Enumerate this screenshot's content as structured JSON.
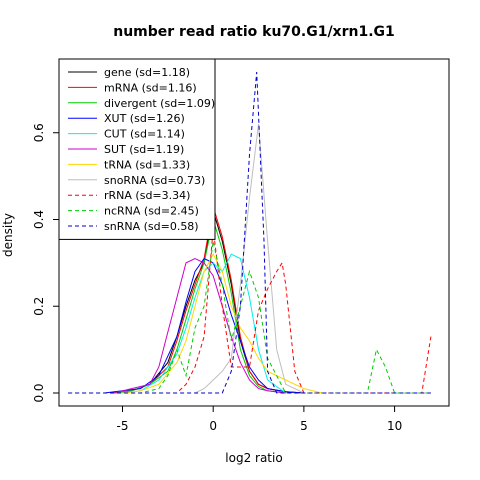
{
  "chart_data": {
    "type": "line",
    "title": "number read ratio ku70.G1/xrn1.G1",
    "xlabel": "log2 ratio",
    "ylabel": "density",
    "xlim": [
      -8.5,
      13
    ],
    "ylim": [
      -0.03,
      0.77
    ],
    "x_ticks": [
      -5,
      0,
      5,
      10
    ],
    "y_ticks": [
      0.0,
      0.2,
      0.4,
      0.6
    ],
    "x_tick_labels": [
      "-5",
      "0",
      "5",
      "10"
    ],
    "y_tick_labels": [
      "0.0",
      "0.2",
      "0.4",
      "0.6"
    ],
    "grid": false,
    "legend_position": "top-left",
    "series": [
      {
        "name": "gene (sd=1.18)",
        "color": "#000000",
        "dash": "solid",
        "x": [
          -5.5,
          -4.5,
          -3.5,
          -2.5,
          -2,
          -1.5,
          -1,
          -0.5,
          0,
          0.5,
          1,
          1.5,
          2,
          2.5,
          3,
          4,
          5
        ],
        "y": [
          0,
          0.005,
          0.02,
          0.07,
          0.13,
          0.2,
          0.26,
          0.3,
          0.42,
          0.35,
          0.25,
          0.12,
          0.05,
          0.02,
          0.01,
          0.003,
          0
        ]
      },
      {
        "name": "mRNA (sd=1.16)",
        "color": "#ff0000",
        "dash": "solid",
        "x": [
          -5.5,
          -4.5,
          -3.5,
          -2.5,
          -2,
          -1.5,
          -1,
          -0.5,
          0,
          0.5,
          1,
          1.5,
          2,
          2.5,
          3,
          4,
          5
        ],
        "y": [
          0,
          0.005,
          0.02,
          0.06,
          0.12,
          0.19,
          0.25,
          0.31,
          0.43,
          0.36,
          0.26,
          0.13,
          0.05,
          0.02,
          0.01,
          0.003,
          0
        ]
      },
      {
        "name": "divergent (sd=1.09)",
        "color": "#00cd00",
        "dash": "solid",
        "x": [
          -5.5,
          -4.5,
          -3.5,
          -2.5,
          -2,
          -1.5,
          -1,
          -0.5,
          0,
          0.5,
          1,
          1.5,
          2,
          2.5,
          3,
          4
        ],
        "y": [
          0,
          0.005,
          0.02,
          0.05,
          0.1,
          0.17,
          0.24,
          0.3,
          0.4,
          0.33,
          0.23,
          0.1,
          0.04,
          0.015,
          0.005,
          0
        ]
      },
      {
        "name": "XUT (sd=1.26)",
        "color": "#0000ff",
        "dash": "solid",
        "x": [
          -6,
          -5,
          -4,
          -3,
          -2,
          -1.5,
          -1,
          -0.5,
          0,
          0.5,
          1,
          1.5,
          2,
          2.5,
          3,
          4,
          5
        ],
        "y": [
          0,
          0.005,
          0.01,
          0.04,
          0.13,
          0.21,
          0.28,
          0.31,
          0.3,
          0.25,
          0.18,
          0.12,
          0.06,
          0.03,
          0.01,
          0.003,
          0
        ]
      },
      {
        "name": "CUT (sd=1.14)",
        "color": "#00eeee",
        "dash": "solid",
        "x": [
          -5,
          -4,
          -3,
          -2,
          -1.5,
          -1,
          -0.5,
          0,
          0.5,
          1,
          1.5,
          2,
          2.5,
          3,
          4
        ],
        "y": [
          0,
          0.005,
          0.03,
          0.09,
          0.15,
          0.22,
          0.28,
          0.3,
          0.28,
          0.32,
          0.31,
          0.22,
          0.1,
          0.03,
          0
        ]
      },
      {
        "name": "SUT (sd=1.19)",
        "color": "#cd00cd",
        "dash": "solid",
        "x": [
          -5.5,
          -4.5,
          -3.5,
          -3,
          -2.5,
          -2,
          -1.5,
          -1,
          -0.5,
          0,
          0.5,
          1,
          1.5,
          2,
          2.5,
          3,
          4
        ],
        "y": [
          0,
          0.01,
          0.02,
          0.06,
          0.14,
          0.22,
          0.3,
          0.31,
          0.3,
          0.27,
          0.2,
          0.13,
          0.07,
          0.03,
          0.01,
          0.005,
          0
        ]
      },
      {
        "name": "tRNA (sd=1.33)",
        "color": "#ffd700",
        "dash": "solid",
        "x": [
          -5,
          -4,
          -3,
          -2,
          -1.5,
          -1,
          -0.5,
          0,
          0.5,
          1,
          1.5,
          2,
          2.5,
          3,
          4,
          5,
          6
        ],
        "y": [
          0,
          0.005,
          0.02,
          0.07,
          0.12,
          0.2,
          0.28,
          0.32,
          0.28,
          0.2,
          0.15,
          0.12,
          0.08,
          0.05,
          0.03,
          0.01,
          0
        ]
      },
      {
        "name": "snoRNA (sd=0.73)",
        "color": "#bebebe",
        "dash": "solid",
        "x": [
          -1,
          -0.5,
          0,
          0.5,
          1,
          1.5,
          2,
          2.5,
          3,
          3.5,
          4,
          5
        ],
        "y": [
          0,
          0.01,
          0.03,
          0.05,
          0.08,
          0.25,
          0.45,
          0.62,
          0.35,
          0.1,
          0.02,
          0
        ]
      },
      {
        "name": "rRNA (sd=3.34)",
        "color": "#ff0000",
        "dash": "dashed",
        "x": [
          -8,
          -4,
          -2,
          -1.5,
          -1,
          -0.5,
          0,
          0.5,
          1,
          1.5,
          2,
          2.5,
          3,
          3.5,
          3.8,
          4,
          4.5,
          5,
          6,
          8,
          10,
          11.5,
          12
        ],
        "y": [
          0,
          0,
          0,
          0.02,
          0.06,
          0.13,
          0.38,
          0.2,
          0.06,
          0.06,
          0.06,
          0.19,
          0.24,
          0.28,
          0.3,
          0.25,
          0.05,
          0,
          0,
          0,
          0,
          0,
          0.13
        ]
      },
      {
        "name": "ncRNA (sd=2.45)",
        "color": "#00cd00",
        "dash": "dashed",
        "x": [
          -8,
          -4,
          -3,
          -2.5,
          -2,
          -1.5,
          -1,
          -0.5,
          0,
          0.5,
          1,
          1.5,
          2,
          2.5,
          3,
          4,
          5,
          6,
          7,
          8,
          8.5,
          9,
          9.5,
          10,
          11,
          12
        ],
        "y": [
          0,
          0,
          0.01,
          0.04,
          0.1,
          0.04,
          0.15,
          0.2,
          0.35,
          0.25,
          0.12,
          0.2,
          0.28,
          0.22,
          0.08,
          0,
          0,
          0,
          0,
          0,
          0,
          0.1,
          0.06,
          0,
          0,
          0
        ]
      },
      {
        "name": "snRNA (sd=0.58)",
        "color": "#0000cd",
        "dash": "dashed",
        "x": [
          -8,
          -2,
          0,
          0.5,
          1,
          1.5,
          2,
          2.4,
          2.8,
          3,
          3.5,
          5,
          12
        ],
        "y": [
          0,
          0,
          0,
          0,
          0.05,
          0.2,
          0.55,
          0.74,
          0.35,
          0.05,
          0,
          0,
          0
        ]
      }
    ]
  }
}
